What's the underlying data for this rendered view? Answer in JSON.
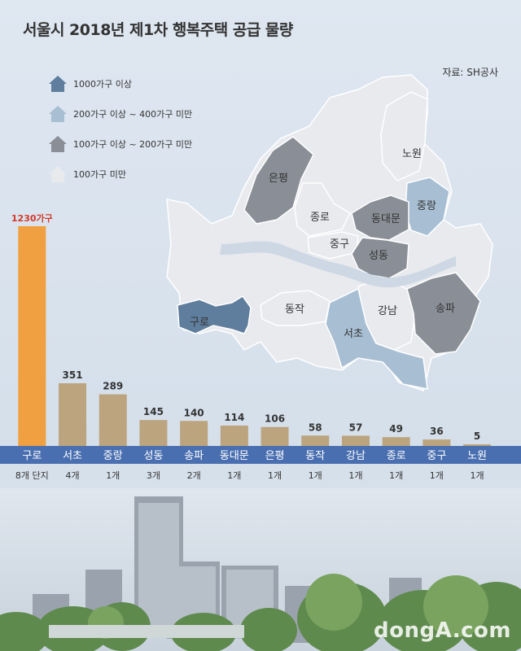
{
  "title": "서울시 2018년 제1차 행복주택 공급 물량",
  "source": "자료: SH공사",
  "watermark": "dongA.com",
  "legend": [
    {
      "label": "1000가구 이상",
      "color": "#5f7d9c"
    },
    {
      "label": "200가구 이상 ~ 400가구 미만",
      "color": "#a7bed3"
    },
    {
      "label": "100가구 이상 ~ 200가구 미만",
      "color": "#8a8e96"
    },
    {
      "label": "100가구 미만",
      "color": "#e8eaee"
    }
  ],
  "map": {
    "labels": [
      {
        "name": "노원"
      },
      {
        "name": "은평"
      },
      {
        "name": "중랑"
      },
      {
        "name": "종로"
      },
      {
        "name": "동대문"
      },
      {
        "name": "중구"
      },
      {
        "name": "성동"
      },
      {
        "name": "동작"
      },
      {
        "name": "강남"
      },
      {
        "name": "송파"
      },
      {
        "name": "구로"
      },
      {
        "name": "서초"
      }
    ]
  },
  "chart_data": {
    "type": "bar",
    "categories": [
      "구로",
      "서초",
      "중랑",
      "성동",
      "송파",
      "동대문",
      "은평",
      "동작",
      "강남",
      "종로",
      "중구",
      "노원"
    ],
    "values": [
      1230,
      351,
      289,
      145,
      140,
      114,
      106,
      58,
      57,
      49,
      36,
      5
    ],
    "value_labels": [
      "1230가구",
      "351",
      "289",
      "145",
      "140",
      "114",
      "106",
      "58",
      "57",
      "49",
      "36",
      "5"
    ],
    "complex_counts": [
      "8개 단지",
      "4개",
      "1개",
      "3개",
      "2개",
      "1개",
      "1개",
      "1개",
      "1개",
      "1개",
      "1개",
      "1개"
    ],
    "highlight_index": 0,
    "ylim": [
      0,
      1230
    ],
    "colors": {
      "highlight": "#f0a040",
      "normal": "#bba47e",
      "axis_band": "#4a6fb0",
      "highlight_label": "#d23a2a"
    }
  }
}
